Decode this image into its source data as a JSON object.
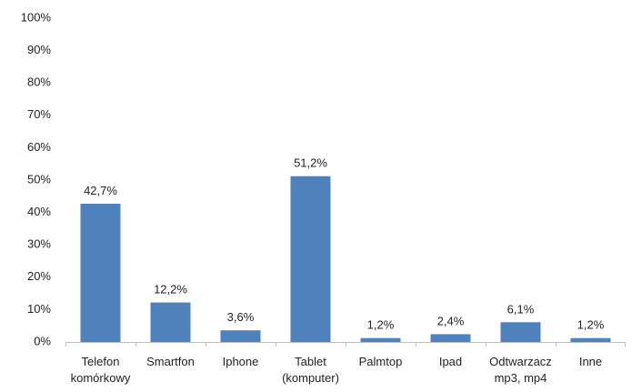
{
  "chart_data": {
    "type": "bar",
    "categories": [
      [
        "Telefon",
        "komórkowy"
      ],
      [
        "Smartfon"
      ],
      [
        "Iphone"
      ],
      [
        "Tablet",
        "(komputer)"
      ],
      [
        "Palmtop"
      ],
      [
        "Ipad"
      ],
      [
        "Odtwarzacz",
        "mp3, mp4"
      ],
      [
        "Inne"
      ]
    ],
    "values": [
      42.7,
      12.2,
      3.6,
      51.2,
      1.2,
      2.4,
      6.1,
      1.2
    ],
    "data_labels": [
      "42,7%",
      "12,2%",
      "3,6%",
      "51,2%",
      "1,2%",
      "2,4%",
      "6,1%",
      "1,2%"
    ],
    "ylim": [
      0,
      100
    ],
    "yticks": [
      0,
      10,
      20,
      30,
      40,
      50,
      60,
      70,
      80,
      90,
      100
    ],
    "ytick_labels": [
      "0%",
      "10%",
      "20%",
      "30%",
      "40%",
      "50%",
      "60%",
      "70%",
      "80%",
      "90%",
      "100%"
    ],
    "grid": false,
    "legend": "none",
    "title": "",
    "xlabel": "",
    "ylabel": "",
    "bar_color": "#4f81bd",
    "axis_color": "#bfbfbf"
  }
}
